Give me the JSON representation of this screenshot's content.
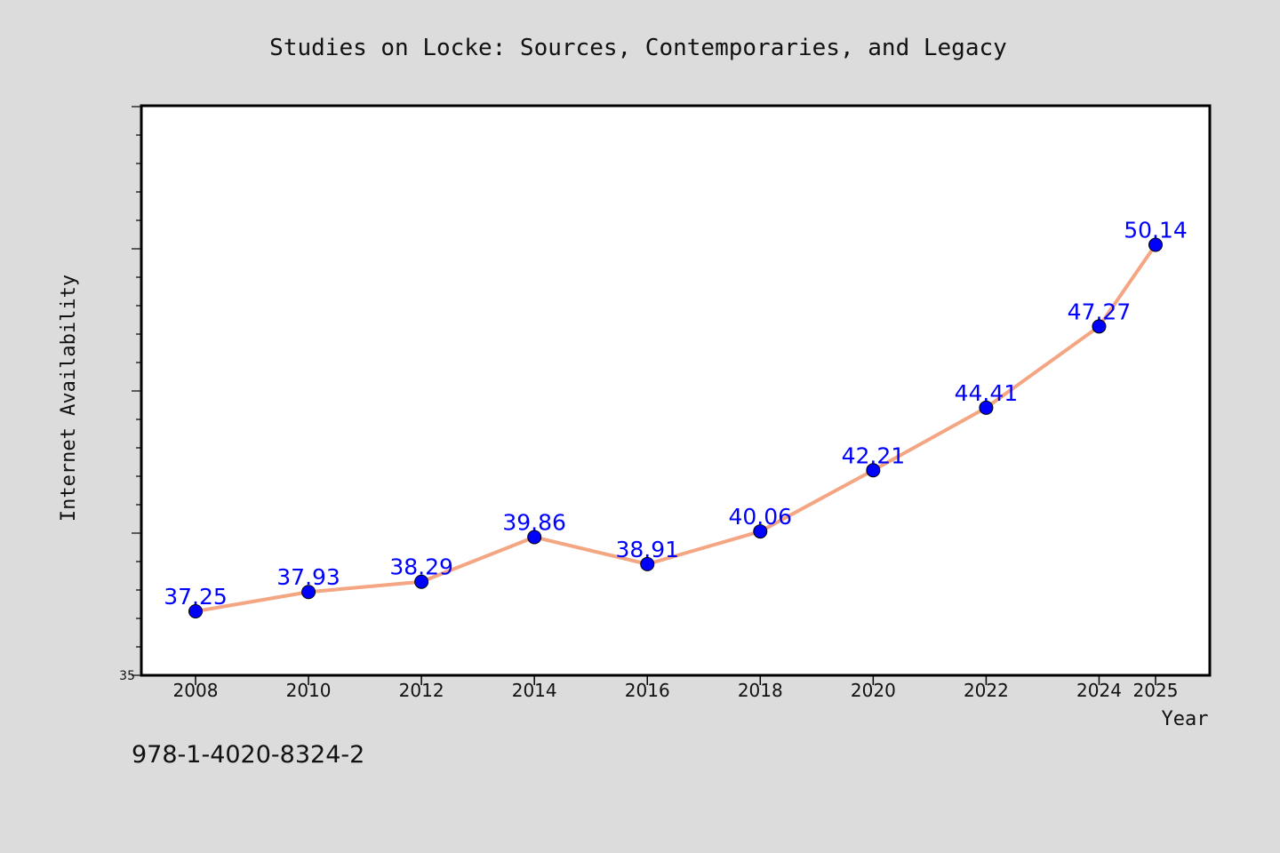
{
  "chart_data": {
    "type": "line",
    "title": "Studies on Locke: Sources, Contemporaries, and Legacy",
    "xlabel": "Year",
    "ylabel": "Internet Availability",
    "x": [
      2008,
      2010,
      2012,
      2014,
      2016,
      2018,
      2020,
      2022,
      2024,
      2025
    ],
    "x_tick_labels": [
      "2008",
      "2010",
      "2012",
      "2014",
      "2016",
      "2018",
      "2020",
      "2022",
      "2024",
      "2025"
    ],
    "y_tick_labels": [
      "35"
    ],
    "series": [
      {
        "values": [
          37.25,
          37.93,
          38.29,
          39.86,
          38.91,
          40.06,
          42.21,
          44.41,
          47.27,
          50.14
        ],
        "data_labels": [
          "37.25",
          "37.93",
          "38.29",
          "39.86",
          "38.91",
          "40.06",
          "42.21",
          "44.41",
          "47.27",
          "50.14"
        ],
        "line_color": "#f4a582",
        "marker_color": "#0000ff",
        "label_color": "#0000ff"
      }
    ],
    "ylim": [
      35,
      55
    ],
    "grid": false,
    "legend": "none",
    "plot_background": "#ffffff",
    "figure_background": "#dcdcdc"
  },
  "footer": {
    "isbn": "978-1-4020-8324-2"
  }
}
